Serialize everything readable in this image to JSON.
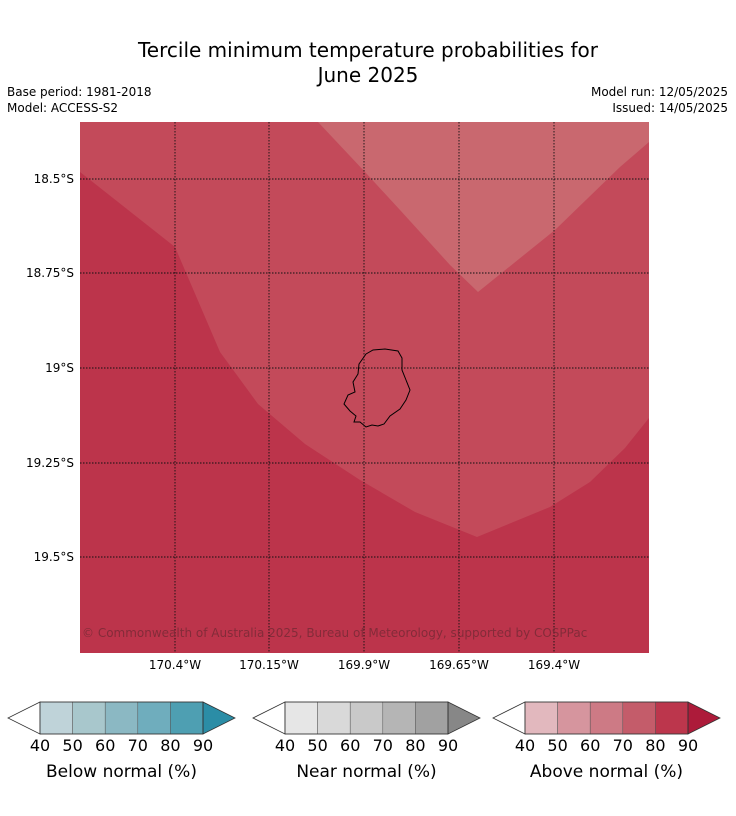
{
  "title_line1": "Tercile minimum temperature probabilities for",
  "title_line2": "June 2025",
  "base_period": "Base period: 1981-2018",
  "model": "Model: ACCESS-S2",
  "model_run": "Model run: 12/05/2025",
  "issued": "Issued: 14/05/2025",
  "copyright": "© Commonwealth of Australia 2025, Bureau of Meteorology, supported by COSPPac",
  "lat_labels": [
    "18.5°S",
    "18.75°S",
    "19°S",
    "19.25°S",
    "19.5°S"
  ],
  "lon_labels": [
    "170.4°W",
    "170.15°W",
    "169.9°W",
    "169.65°W",
    "169.4°W"
  ],
  "legends": [
    {
      "title": "Below normal (%)",
      "ticks": [
        "40",
        "50",
        "60",
        "70",
        "80",
        "90"
      ],
      "colors": [
        "#ffffff",
        "#bfd3d9",
        "#a8c7cc",
        "#8bb8c3",
        "#6fadbd",
        "#4e9fb2",
        "#2b8da6"
      ]
    },
    {
      "title": "Near normal (%)",
      "ticks": [
        "40",
        "50",
        "60",
        "70",
        "80",
        "90"
      ],
      "colors": [
        "#ffffff",
        "#e6e6e6",
        "#d9d9d9",
        "#c9c9c9",
        "#b5b5b5",
        "#a1a1a1",
        "#878787"
      ]
    },
    {
      "title": "Above normal (%)",
      "ticks": [
        "40",
        "50",
        "60",
        "70",
        "80",
        "90"
      ],
      "colors": [
        "#ffffff",
        "#e2b8be",
        "#d6959e",
        "#cd7a85",
        "#c45c6a",
        "#bc364c",
        "#ad1b3a"
      ]
    }
  ],
  "map_colors": {
    "zone_80_90": "#bc344b",
    "zone_70_80": "#c34a5a",
    "zone_60_70": "#c9686f"
  }
}
